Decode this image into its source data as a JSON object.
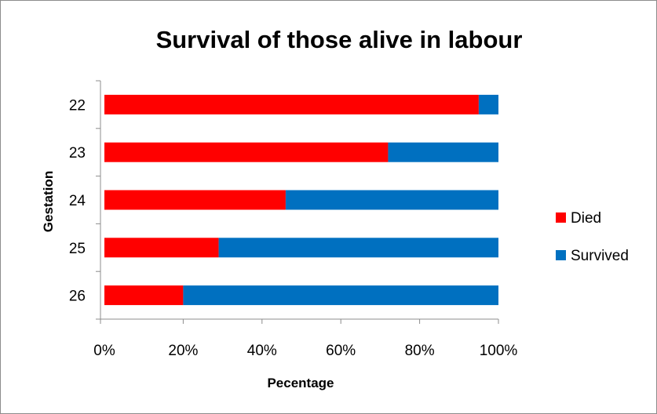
{
  "chart_data": {
    "type": "bar",
    "orientation": "horizontal",
    "stacked": "percent",
    "title": "Survival of those alive in labour",
    "xlabel": "Pecentage",
    "ylabel": "Gestation",
    "categories": [
      "22",
      "23",
      "24",
      "25",
      "26"
    ],
    "x_ticks": [
      "0%",
      "20%",
      "40%",
      "60%",
      "80%",
      "100%"
    ],
    "xlim": [
      0,
      100
    ],
    "series": [
      {
        "name": "Died",
        "color": "#ff0000",
        "values": [
          95,
          72,
          46,
          29,
          20
        ]
      },
      {
        "name": "Survived",
        "color": "#0070c0",
        "values": [
          5,
          28,
          54,
          71,
          80
        ]
      }
    ],
    "legend_position": "right",
    "grid": false
  }
}
